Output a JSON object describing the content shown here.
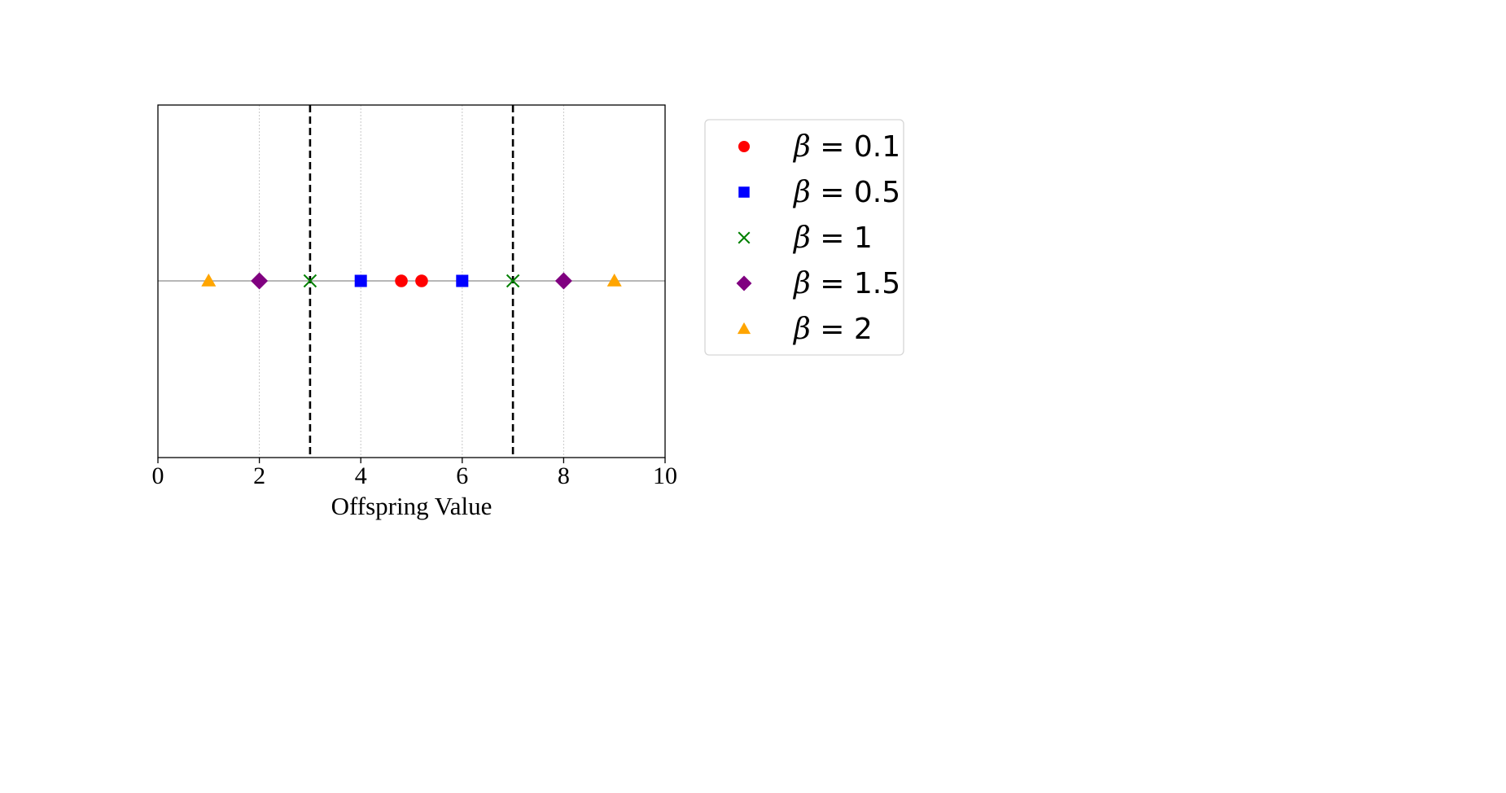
{
  "chart_data": {
    "type": "scatter",
    "title": "",
    "xlabel": "Offspring Value",
    "ylabel": "",
    "xlim": [
      0,
      10
    ],
    "xticks": [
      "0",
      "2",
      "4",
      "6",
      "8",
      "10"
    ],
    "xtick_values": [
      0,
      2,
      4,
      6,
      8,
      10
    ],
    "grid": "vertical dotted lines at x ticks",
    "reference_line_y": 0,
    "dashed_vertical_lines_x": [
      3,
      7
    ],
    "legend_position": "outside-right",
    "series": [
      {
        "name": "β = 0.1",
        "symbol": "β",
        "value_text": "= 0.1",
        "marker": "circle",
        "color": "#ff0000",
        "x": [
          4.8,
          5.2
        ],
        "y": [
          0,
          0
        ]
      },
      {
        "name": "β = 0.5",
        "symbol": "β",
        "value_text": "= 0.5",
        "marker": "square",
        "color": "#0000ff",
        "x": [
          4,
          6
        ],
        "y": [
          0,
          0
        ]
      },
      {
        "name": "β = 1",
        "symbol": "β",
        "value_text": "= 1",
        "marker": "x",
        "color": "#008000",
        "x": [
          3,
          7
        ],
        "y": [
          0,
          0
        ]
      },
      {
        "name": "β = 1.5",
        "symbol": "β",
        "value_text": "= 1.5",
        "marker": "diamond",
        "color": "#800080",
        "x": [
          2,
          8
        ],
        "y": [
          0,
          0
        ]
      },
      {
        "name": "β = 2",
        "symbol": "β",
        "value_text": "= 2",
        "marker": "triangle",
        "color": "#ffa500",
        "x": [
          1,
          9
        ],
        "y": [
          0,
          0
        ]
      }
    ]
  }
}
